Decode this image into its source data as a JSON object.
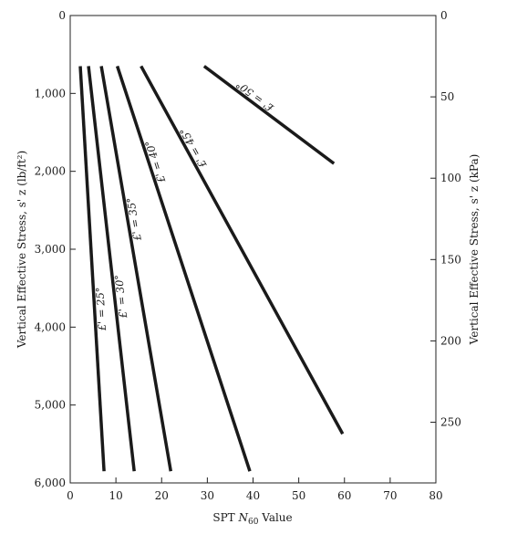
{
  "chart_data": {
    "type": "line",
    "title": "",
    "xlabel_prefix": "SPT ",
    "xlabel_var": "N",
    "xlabel_sub": "60",
    "xlabel_suffix": " Value",
    "ylabel": "Vertical Effective Stress, s' z (lb/ft²)",
    "y2label": "Vertical Effective Stress, s' z (kPa)",
    "xlim": [
      0,
      80
    ],
    "ylim": [
      0,
      6000
    ],
    "y2lim": [
      0,
      287.3
    ],
    "y_inverted": true,
    "xticks": [
      0,
      10,
      20,
      30,
      40,
      50,
      60,
      70,
      80
    ],
    "xtick_labels": [
      "0",
      "10",
      "20",
      "30",
      "40",
      "50",
      "60",
      "70",
      "80"
    ],
    "yticks": [
      0,
      1000,
      2000,
      3000,
      4000,
      5000,
      6000
    ],
    "ytick_labels": [
      "0",
      "1,000",
      "2,000",
      "3,000",
      "4,000",
      "5,000",
      "6,000"
    ],
    "y2ticks": [
      0,
      50,
      100,
      150,
      200,
      250
    ],
    "y2tick_labels": [
      "0",
      "50",
      "100",
      "150",
      "200",
      "250"
    ],
    "grid": false,
    "legend": "none",
    "series": [
      {
        "name": "f' = 25°",
        "label": "£' = 25°",
        "x": [
          2.2,
          7.4
        ],
        "y": [
          650,
          5850
        ],
        "label_at": 0.6
      },
      {
        "name": "f' = 30°",
        "label": "£' = 30°",
        "x": [
          4.0,
          14.0
        ],
        "y": [
          650,
          5850
        ],
        "label_at": 0.57
      },
      {
        "name": "f' = 35°",
        "label": "£' = 35°",
        "x": [
          6.8,
          22.0
        ],
        "y": [
          650,
          5850
        ],
        "label_at": 0.38
      },
      {
        "name": "f' = 40°",
        "label": "£' = 40°",
        "x": [
          10.3,
          39.3
        ],
        "y": [
          650,
          5850
        ],
        "label_at": 0.24
      },
      {
        "name": "f' = 45°",
        "label": "£' = 45°",
        "x": [
          15.5,
          59.6
        ],
        "y": [
          650,
          5370
        ],
        "label_at": 0.23
      },
      {
        "name": "f' = 50°",
        "label": "£' = 50°",
        "x": [
          29.3,
          57.7
        ],
        "y": [
          650,
          1900
        ],
        "label_at": 0.36
      }
    ]
  }
}
